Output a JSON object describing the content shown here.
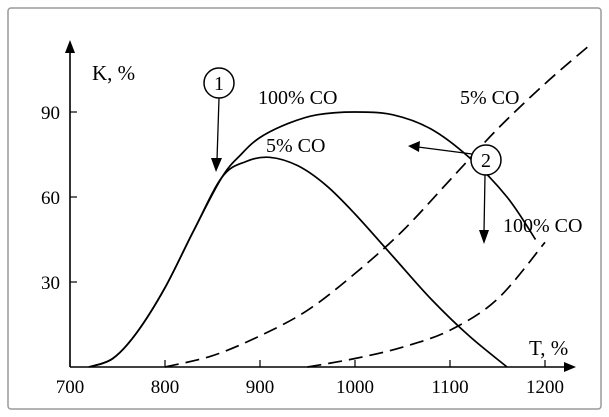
{
  "chart_data": {
    "type": "line",
    "xlabel": "T, %",
    "ylabel": "K, %",
    "xlim": [
      700,
      1270
    ],
    "ylim": [
      0,
      114
    ],
    "x_ticks": [
      700,
      800,
      900,
      1000,
      1100,
      1200
    ],
    "y_ticks": [
      30,
      60,
      90
    ],
    "grid": false,
    "series": [
      {
        "name": "100% CO",
        "style": "solid",
        "x": [
          720,
          745,
          770,
          800,
          830,
          860,
          880,
          900,
          930,
          960,
          1000,
          1040,
          1080,
          1120,
          1160,
          1190
        ],
        "y": [
          0,
          3,
          12,
          28,
          48,
          67,
          75,
          81,
          86,
          89,
          90,
          89,
          84,
          74,
          60,
          45
        ]
      },
      {
        "name": "5% CO",
        "style": "solid",
        "x": [
          720,
          745,
          770,
          800,
          830,
          860,
          885,
          910,
          940,
          970,
          1000,
          1040,
          1080,
          1120,
          1160
        ],
        "y": [
          0,
          3,
          12,
          28,
          48,
          67,
          72.5,
          74,
          71,
          64,
          54,
          39,
          24,
          11,
          0
        ]
      },
      {
        "name": "5% CO",
        "style": "dashed",
        "x": [
          800,
          850,
          900,
          950,
          1000,
          1050,
          1100,
          1150,
          1200,
          1245
        ],
        "y": [
          0,
          4,
          11,
          20,
          33,
          48,
          66,
          84,
          100,
          113
        ]
      },
      {
        "name": "100% CO",
        "style": "dashed",
        "x": [
          950,
          1000,
          1050,
          1100,
          1150,
          1200
        ],
        "y": [
          0,
          3,
          7,
          13,
          24,
          44
        ]
      }
    ],
    "annotations": [
      {
        "label": "1",
        "points_to": [
          858,
          67
        ]
      },
      {
        "label": "2",
        "points_to": [
          [
            1101,
            78
          ],
          [
            1195,
            45
          ]
        ]
      }
    ],
    "series_labels": [
      "100% CO",
      "5% CO",
      "5% CO",
      "100% CO"
    ]
  }
}
